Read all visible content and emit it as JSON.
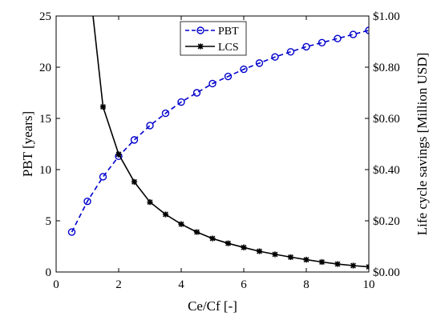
{
  "chart_data": {
    "type": "line",
    "xlabel": "Ce/Cf [-]",
    "ylabel_left": "PBT [years]",
    "ylabel_right": "Life cycle savings [Million USD]",
    "xlim": [
      0,
      10
    ],
    "ylim_left": [
      0,
      25
    ],
    "ylim_right": [
      0,
      1.0
    ],
    "xticks": [
      0,
      2,
      4,
      6,
      8,
      10
    ],
    "yticks_left": [
      0,
      5,
      10,
      15,
      20,
      25
    ],
    "yticks_right": [
      "$0.00",
      "$0.20",
      "$0.40",
      "$0.60",
      "$0.80",
      "$1.00"
    ],
    "yticks_right_values": [
      0,
      0.2,
      0.4,
      0.6,
      0.8,
      1.0
    ],
    "grid": false,
    "legend_position": "top-center",
    "series": [
      {
        "name": "PBT",
        "axis": "left",
        "color": "#0000cc",
        "line_style": "dashed",
        "marker": "circle",
        "x": [
          0.5,
          1.0,
          1.5,
          2.0,
          2.5,
          3.0,
          3.5,
          4.0,
          4.5,
          5.0,
          5.5,
          6.0,
          6.5,
          7.0,
          7.5,
          8.0,
          8.5,
          9.0,
          9.5,
          10.0
        ],
        "y": [
          3.9,
          6.9,
          9.3,
          11.3,
          12.9,
          14.3,
          15.5,
          16.6,
          17.5,
          18.4,
          19.1,
          19.8,
          20.4,
          21.0,
          21.5,
          22.0,
          22.4,
          22.8,
          23.2,
          23.6
        ]
      },
      {
        "name": "LCS",
        "axis": "right",
        "color": "#000000",
        "line_style": "solid",
        "marker": "asterisk",
        "x": [
          1.0,
          1.5,
          2.0,
          2.5,
          3.0,
          3.5,
          4.0,
          4.5,
          5.0,
          5.5,
          6.0,
          6.5,
          7.0,
          7.5,
          8.0,
          8.5,
          9.0,
          9.5,
          10.0
        ],
        "y": [
          1.2,
          0.645,
          0.46,
          0.352,
          0.273,
          0.225,
          0.187,
          0.156,
          0.131,
          0.112,
          0.096,
          0.081,
          0.069,
          0.058,
          0.048,
          0.039,
          0.031,
          0.025,
          0.02
        ]
      }
    ]
  }
}
